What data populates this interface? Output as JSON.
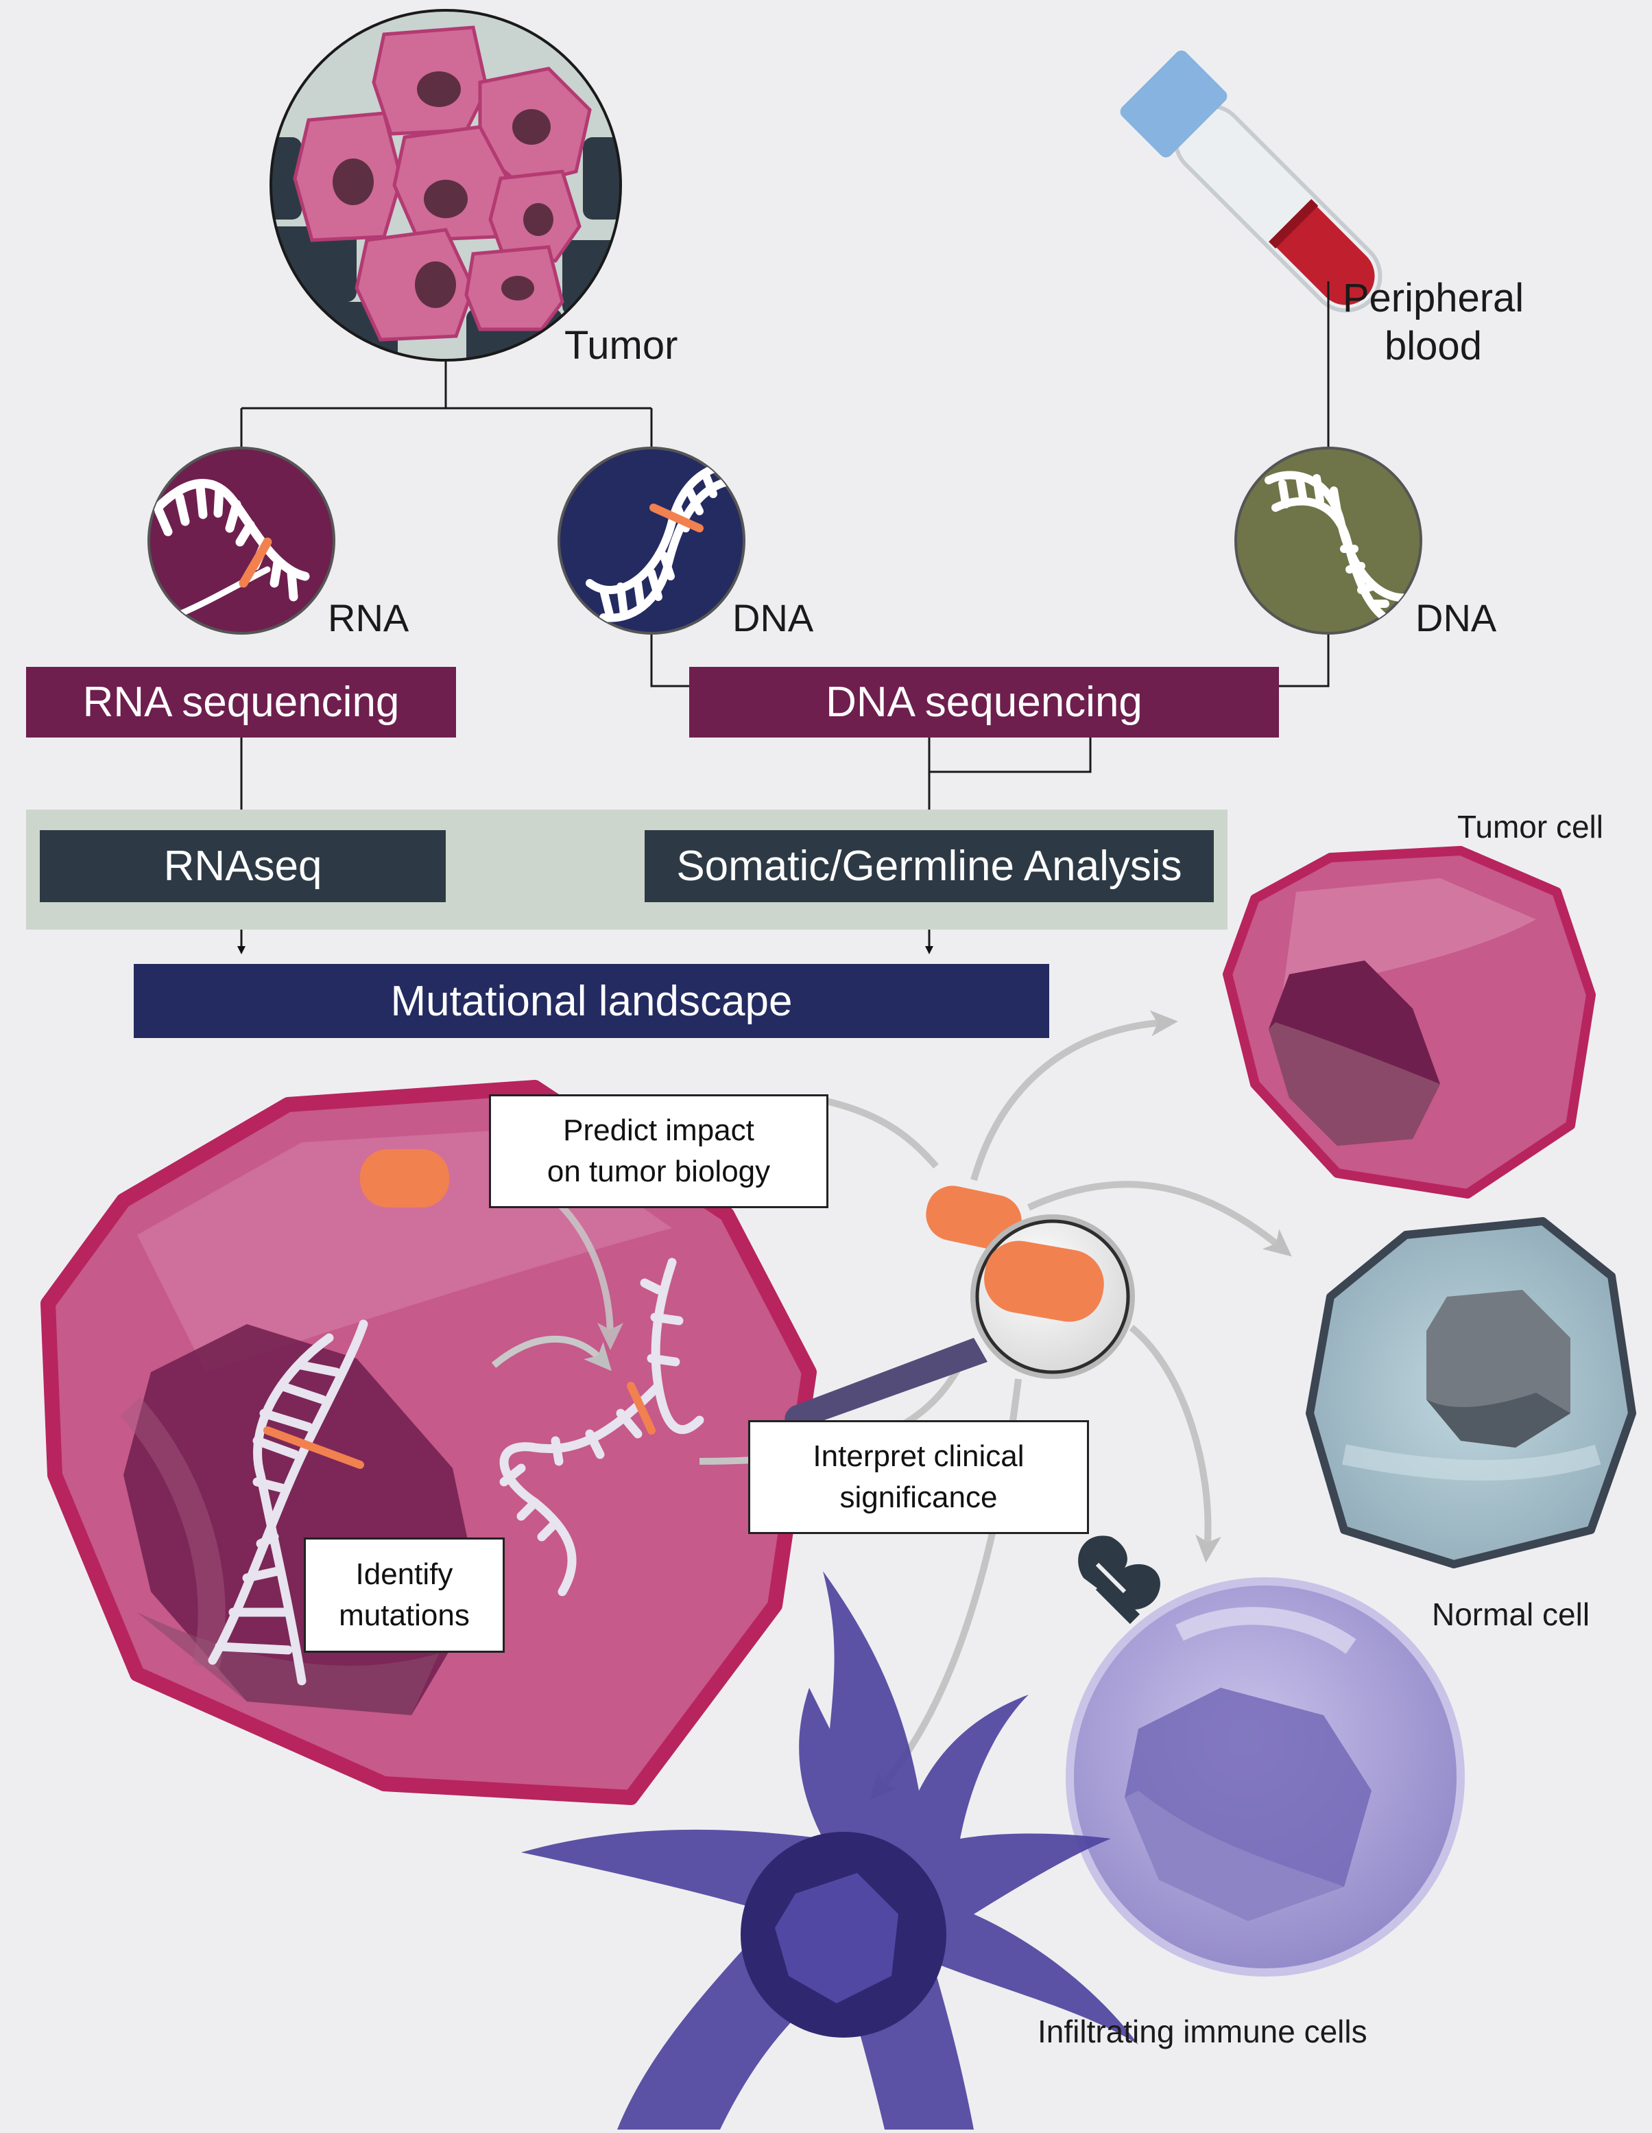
{
  "labels": {
    "tumor": "Tumor",
    "peripheral_blood": "Peripheral\nblood",
    "rna": "RNA",
    "dna_tumor": "DNA",
    "dna_blood": "DNA",
    "tumor_cell": "Tumor cell",
    "normal_cell": "Normal cell",
    "immune_cells": "Infiltrating immune cells"
  },
  "bars": {
    "rna_sequencing": "RNA sequencing",
    "dna_sequencing": "DNA sequencing",
    "rnaseq": "RNAseq",
    "somatic_germline": "Somatic/Germline Analysis",
    "mutational_landscape": "Mutational landscape"
  },
  "boxes": {
    "predict_impact": "Predict impact\non tumor biology",
    "interpret": "Interpret clinical\nsignificance",
    "identify": "Identify\nmutations"
  },
  "colors": {
    "background": "#eeeef0",
    "plum": "#6e1f4e",
    "slate": "#2d3a45",
    "navy": "#232b61",
    "sage_panel": "#cdd6cd",
    "olive": "#6f7548",
    "tumor_pink": "#c65a8a",
    "tumor_rim": "#b8245e",
    "mutation_orange": "#f28150",
    "blood_red": "#c0202e",
    "tube_cap": "#86b3e0",
    "normal_cell_blue": "#a6c0cc",
    "immune_lavender": "#a8a0d4",
    "dendritic_purple": "#4e44a0"
  }
}
